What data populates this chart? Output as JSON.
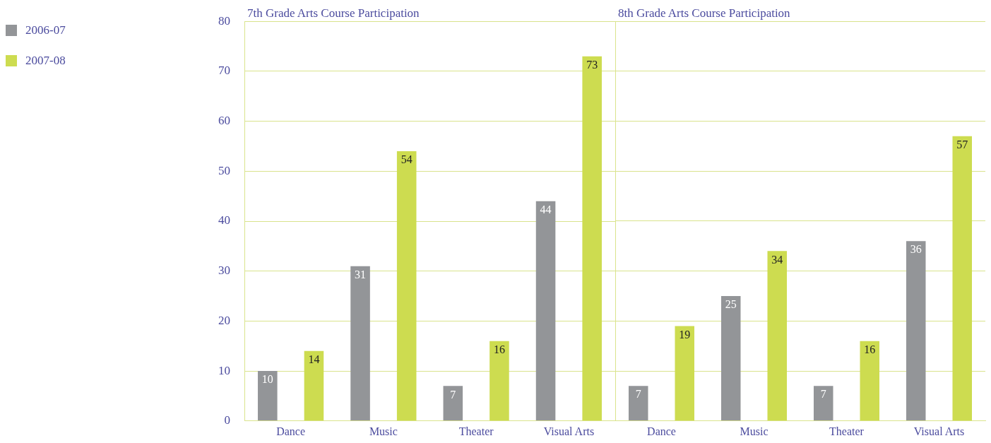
{
  "chart_data": [
    {
      "type": "bar",
      "title": "7th Grade Arts Course Participation",
      "categories": [
        "Dance",
        "Music",
        "Theater",
        "Visual Arts"
      ],
      "series": [
        {
          "name": "2006-07",
          "color": "#939598",
          "values": [
            10,
            31,
            7,
            44
          ]
        },
        {
          "name": "2007-08",
          "color": "#cddc50",
          "values": [
            14,
            54,
            16,
            73
          ]
        }
      ],
      "ylim": [
        0,
        80
      ],
      "yticks": [
        0,
        10,
        20,
        30,
        40,
        50,
        60,
        70,
        80
      ],
      "grid": "y",
      "data_labels": true,
      "legend": "top left"
    },
    {
      "type": "bar",
      "title": "8th Grade Arts Course Participation",
      "categories": [
        "Dance",
        "Music",
        "Theater",
        "Visual Arts"
      ],
      "series": [
        {
          "name": "2006-07",
          "color": "#939598",
          "values": [
            7,
            25,
            7,
            36
          ]
        },
        {
          "name": "2007-08",
          "color": "#cddc50",
          "values": [
            19,
            34,
            16,
            57
          ]
        }
      ],
      "ylim": [
        0,
        80
      ],
      "yticks": [
        0,
        10,
        20,
        30,
        40,
        50,
        60,
        70,
        80
      ],
      "grid": "y",
      "data_labels": true,
      "tick_labels": "x"
    }
  ]
}
